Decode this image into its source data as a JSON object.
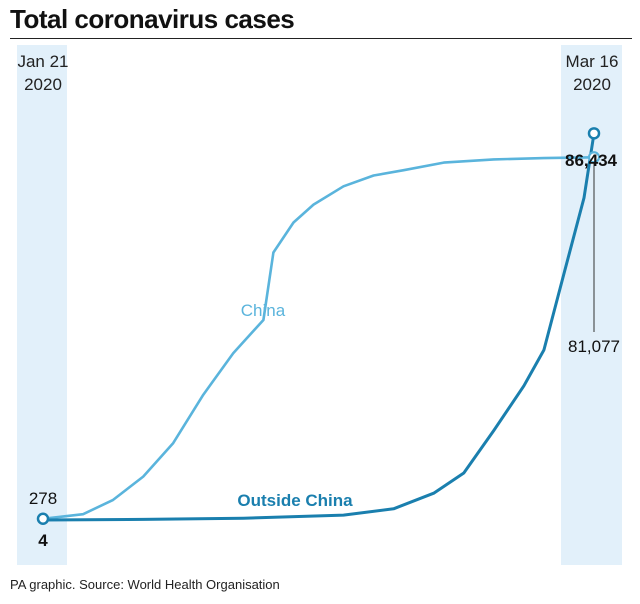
{
  "chart_data": {
    "type": "line",
    "title": "Total coronavirus cases",
    "source": "PA graphic. Source: World Health Organisation",
    "x_start_label": [
      "Jan 21",
      "2020"
    ],
    "x_end_label": [
      "Mar 16",
      "2020"
    ],
    "x_range": [
      "2020-01-21",
      "2020-03-16"
    ],
    "y_range": [
      0,
      95000
    ],
    "grid": false,
    "colors": {
      "China": "#5ab4dc",
      "Outside China": "#1a7fae",
      "band": "#e2f0fa"
    },
    "series": [
      {
        "name": "China",
        "start_value": "278",
        "end_value": "81,077",
        "points": [
          [
            "2020-01-21",
            278
          ],
          [
            "2020-01-25",
            1300
          ],
          [
            "2020-01-28",
            4500
          ],
          [
            "2020-01-31",
            9700
          ],
          [
            "2020-02-03",
            17200
          ],
          [
            "2020-02-06",
            28000
          ],
          [
            "2020-02-09",
            37300
          ],
          [
            "2020-02-12",
            44700
          ],
          [
            "2020-02-13",
            59800
          ],
          [
            "2020-02-15",
            66500
          ],
          [
            "2020-02-17",
            70500
          ],
          [
            "2020-02-20",
            74600
          ],
          [
            "2020-02-23",
            77000
          ],
          [
            "2020-02-26",
            78200
          ],
          [
            "2020-03-01",
            79900
          ],
          [
            "2020-03-06",
            80600
          ],
          [
            "2020-03-11",
            80900
          ],
          [
            "2020-03-16",
            81077
          ]
        ]
      },
      {
        "name": "Outside China",
        "start_value": "4",
        "end_value": "86,434",
        "points": [
          [
            "2020-01-21",
            4
          ],
          [
            "2020-01-31",
            130
          ],
          [
            "2020-02-10",
            400
          ],
          [
            "2020-02-20",
            1100
          ],
          [
            "2020-02-25",
            2500
          ],
          [
            "2020-02-29",
            6000
          ],
          [
            "2020-03-03",
            10500
          ],
          [
            "2020-03-06",
            20000
          ],
          [
            "2020-03-09",
            30000
          ],
          [
            "2020-03-11",
            38000
          ],
          [
            "2020-03-13",
            55000
          ],
          [
            "2020-03-15",
            72000
          ],
          [
            "2020-03-16",
            86434
          ]
        ]
      }
    ]
  }
}
